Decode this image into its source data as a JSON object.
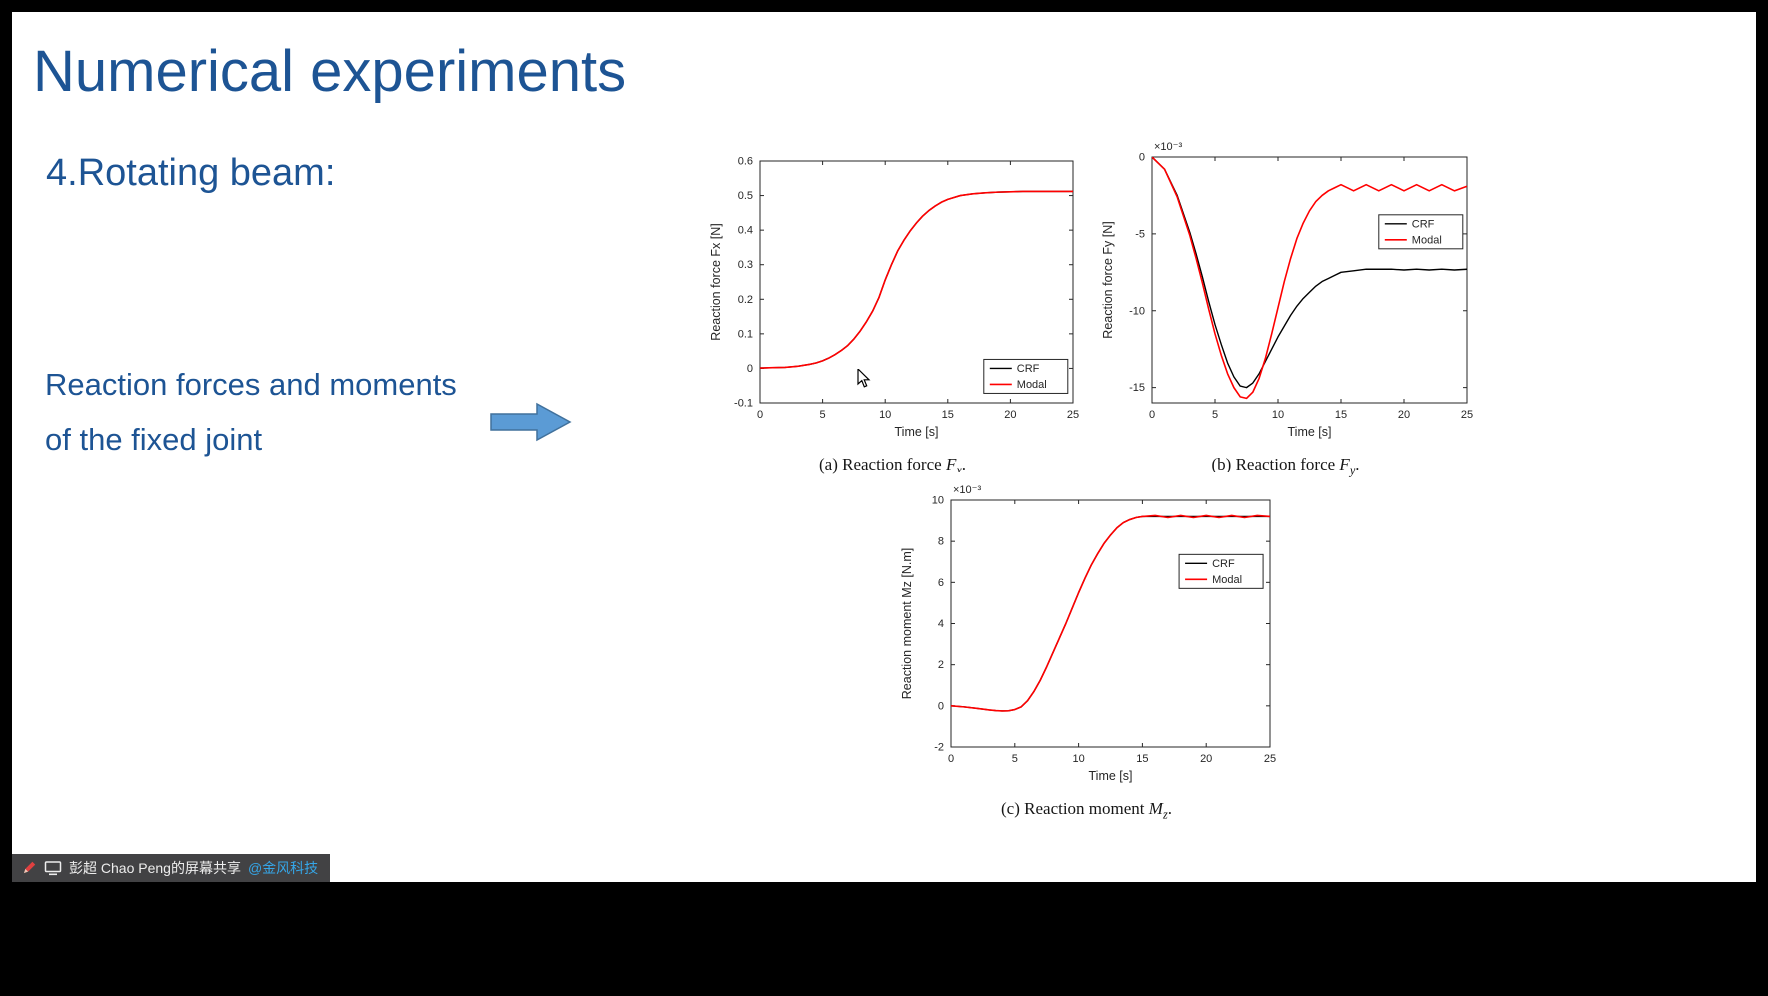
{
  "slide": {
    "title": "Numerical experiments",
    "section": "4.Rotating beam:",
    "body_lines": [
      "Reaction forces and moments",
      "of the fixed joint"
    ],
    "text_color": "#1d5494",
    "arrow_color": "#5B9BD5",
    "arrow_border_color": "#41719C"
  },
  "share_bar": {
    "presenter": "彭超 Chao Peng的屏幕共享",
    "mention": "@金风科技",
    "mention_color": "#35a6e8"
  },
  "chart_data": [
    {
      "type": "line",
      "caption": {
        "prefix": "(a) Reaction force ",
        "var": "F",
        "sub": "x",
        "suffix": "."
      },
      "xlabel": "Time [s]",
      "ylabel": "Reaction force Fx [N]",
      "xlim": [
        0,
        25
      ],
      "ylim": [
        -0.1,
        0.6
      ],
      "xticks": [
        0,
        5,
        10,
        15,
        20,
        25
      ],
      "yticks": [
        -0.1,
        0,
        0.1,
        0.2,
        0.3,
        0.4,
        0.5,
        0.6
      ],
      "multiplier": "",
      "grid": false,
      "legend": {
        "labels": [
          "CRF",
          "Modal"
        ],
        "anchor": [
          0.715,
          0.82
        ]
      },
      "x": [
        0,
        1,
        2,
        3,
        3.5,
        4,
        4.5,
        5,
        5.5,
        6,
        6.5,
        7,
        7.5,
        8,
        8.5,
        9,
        9.5,
        10,
        10.5,
        11,
        11.5,
        12,
        12.5,
        13,
        13.5,
        14,
        14.5,
        15,
        16,
        17,
        18,
        19,
        20,
        21,
        22,
        23,
        24,
        25
      ],
      "series": [
        {
          "name": "CRF",
          "color": "#000000",
          "width": 1.4,
          "y": [
            0.001,
            0.002,
            0.003,
            0.006,
            0.009,
            0.012,
            0.016,
            0.022,
            0.03,
            0.04,
            0.052,
            0.066,
            0.085,
            0.108,
            0.135,
            0.166,
            0.205,
            0.256,
            0.3,
            0.34,
            0.371,
            0.398,
            0.421,
            0.441,
            0.457,
            0.47,
            0.481,
            0.489,
            0.5,
            0.505,
            0.508,
            0.51,
            0.511,
            0.512,
            0.512,
            0.512,
            0.512,
            0.512
          ]
        },
        {
          "name": "Modal",
          "color": "#ff0000",
          "width": 1.6,
          "y": [
            0.001,
            0.002,
            0.003,
            0.006,
            0.009,
            0.012,
            0.016,
            0.022,
            0.03,
            0.04,
            0.052,
            0.066,
            0.085,
            0.108,
            0.135,
            0.166,
            0.205,
            0.256,
            0.3,
            0.34,
            0.371,
            0.398,
            0.421,
            0.441,
            0.457,
            0.47,
            0.481,
            0.489,
            0.5,
            0.505,
            0.508,
            0.51,
            0.511,
            0.512,
            0.512,
            0.512,
            0.512,
            0.512
          ]
        }
      ]
    },
    {
      "type": "line",
      "caption": {
        "prefix": "(b) Reaction force ",
        "var": "F",
        "sub": "y",
        "suffix": "."
      },
      "xlabel": "Time [s]",
      "ylabel": "Reaction force Fy [N]",
      "xlim": [
        0,
        25
      ],
      "ylim": [
        -16,
        0
      ],
      "xticks": [
        0,
        5,
        10,
        15,
        20,
        25
      ],
      "yticks": [
        0,
        -5,
        -10,
        -15
      ],
      "multiplier": "×10⁻³",
      "grid": false,
      "legend": {
        "labels": [
          "CRF",
          "Modal"
        ],
        "anchor": [
          0.72,
          0.235
        ]
      },
      "x": [
        0,
        1,
        2,
        3,
        3.5,
        4,
        4.5,
        5,
        5.5,
        6,
        6.5,
        7,
        7.5,
        8,
        8.5,
        9,
        9.5,
        10,
        10.5,
        11,
        11.5,
        12,
        12.5,
        13,
        13.5,
        14,
        14.5,
        15,
        16,
        17,
        18,
        19,
        20,
        21,
        22,
        23,
        24,
        25
      ],
      "series": [
        {
          "name": "CRF",
          "color": "#000000",
          "width": 1.4,
          "y": [
            0,
            -0.8,
            -2.5,
            -4.9,
            -6.3,
            -7.8,
            -9.4,
            -10.9,
            -12.2,
            -13.4,
            -14.3,
            -14.9,
            -15.0,
            -14.7,
            -14.1,
            -13.3,
            -12.5,
            -11.7,
            -11.0,
            -10.3,
            -9.7,
            -9.2,
            -8.8,
            -8.4,
            -8.1,
            -7.9,
            -7.7,
            -7.5,
            -7.4,
            -7.3,
            -7.3,
            -7.3,
            -7.35,
            -7.3,
            -7.35,
            -7.3,
            -7.35,
            -7.3
          ]
        },
        {
          "name": "Modal",
          "color": "#ff0000",
          "width": 1.6,
          "y": [
            0,
            -0.8,
            -2.6,
            -5.1,
            -6.6,
            -8.2,
            -9.9,
            -11.5,
            -12.9,
            -14.1,
            -15.0,
            -15.6,
            -15.7,
            -15.3,
            -14.4,
            -13.1,
            -11.5,
            -9.8,
            -8.1,
            -6.6,
            -5.3,
            -4.3,
            -3.5,
            -2.9,
            -2.5,
            -2.2,
            -2.0,
            -1.8,
            -2.2,
            -1.8,
            -2.2,
            -1.8,
            -2.2,
            -1.8,
            -2.2,
            -1.8,
            -2.2,
            -1.9
          ]
        }
      ]
    },
    {
      "type": "line",
      "caption": {
        "prefix": "(c) Reaction moment ",
        "var": "M",
        "sub": "z",
        "suffix": "."
      },
      "xlabel": "Time [s]",
      "ylabel": "Reaction moment Mz [N.m]",
      "xlim": [
        0,
        25
      ],
      "ylim": [
        -2,
        10
      ],
      "xticks": [
        0,
        5,
        10,
        15,
        20,
        25
      ],
      "yticks": [
        -2,
        0,
        2,
        4,
        6,
        8,
        10
      ],
      "multiplier": "×10⁻³",
      "grid": false,
      "legend": {
        "labels": [
          "CRF",
          "Modal"
        ],
        "anchor": [
          0.715,
          0.22
        ]
      },
      "x": [
        0,
        1,
        2,
        3,
        3.5,
        4,
        4.5,
        5,
        5.5,
        6,
        6.5,
        7,
        7.5,
        8,
        8.5,
        9,
        9.5,
        10,
        10.5,
        11,
        11.5,
        12,
        12.5,
        13,
        13.5,
        14,
        14.5,
        15,
        16,
        17,
        18,
        19,
        20,
        21,
        22,
        23,
        24,
        25
      ],
      "series": [
        {
          "name": "CRF",
          "color": "#000000",
          "width": 1.4,
          "y": [
            0,
            -0.05,
            -0.12,
            -0.2,
            -0.23,
            -0.25,
            -0.24,
            -0.18,
            -0.05,
            0.25,
            0.7,
            1.25,
            1.9,
            2.6,
            3.3,
            4.0,
            4.75,
            5.5,
            6.2,
            6.85,
            7.4,
            7.9,
            8.3,
            8.65,
            8.9,
            9.05,
            9.15,
            9.2,
            9.2,
            9.2,
            9.2,
            9.2,
            9.2,
            9.2,
            9.2,
            9.2,
            9.2,
            9.2
          ]
        },
        {
          "name": "Modal",
          "color": "#ff0000",
          "width": 1.6,
          "y": [
            0,
            -0.05,
            -0.12,
            -0.2,
            -0.23,
            -0.25,
            -0.24,
            -0.18,
            -0.05,
            0.25,
            0.7,
            1.25,
            1.9,
            2.6,
            3.3,
            4.0,
            4.75,
            5.5,
            6.2,
            6.85,
            7.4,
            7.9,
            8.3,
            8.65,
            8.9,
            9.05,
            9.15,
            9.2,
            9.25,
            9.15,
            9.25,
            9.15,
            9.25,
            9.15,
            9.25,
            9.15,
            9.25,
            9.2
          ]
        }
      ]
    }
  ]
}
